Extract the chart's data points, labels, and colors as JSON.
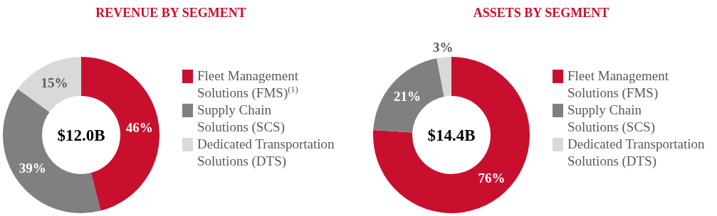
{
  "chart_data": [
    {
      "type": "donut",
      "title": "REVENUE BY SEGMENT",
      "categories": [
        "Fleet Management\nSolutions (FMS)$^{(1)}$",
        "Supply Chain\nSolutions (SCS)",
        "Dedicated Transportation\nSolutions (DTS)"
      ],
      "values": [
        46,
        39,
        15
      ],
      "value_labels": [
        "46%",
        "39%",
        "15%"
      ],
      "colors": [
        "#c8102e",
        "#808083",
        "#d9d9d9"
      ],
      "annotations": [
        "$12.0B"
      ],
      "legend": "right"
    },
    {
      "type": "donut",
      "title": "ASSETS BY SEGMENT",
      "categories": [
        "Fleet Management\nSolutions (FMS)",
        "Supply Chain\nSolutions (SCS)",
        "Dedicated Transportation\nSolutions (DTS)"
      ],
      "values": [
        76,
        21,
        3
      ],
      "value_labels": [
        "76%",
        "21%",
        "3%"
      ],
      "colors": [
        "#c8102e",
        "#808083",
        "#d9d9d9"
      ],
      "annotations": [
        "$14.4B"
      ],
      "legend": "right"
    }
  ]
}
